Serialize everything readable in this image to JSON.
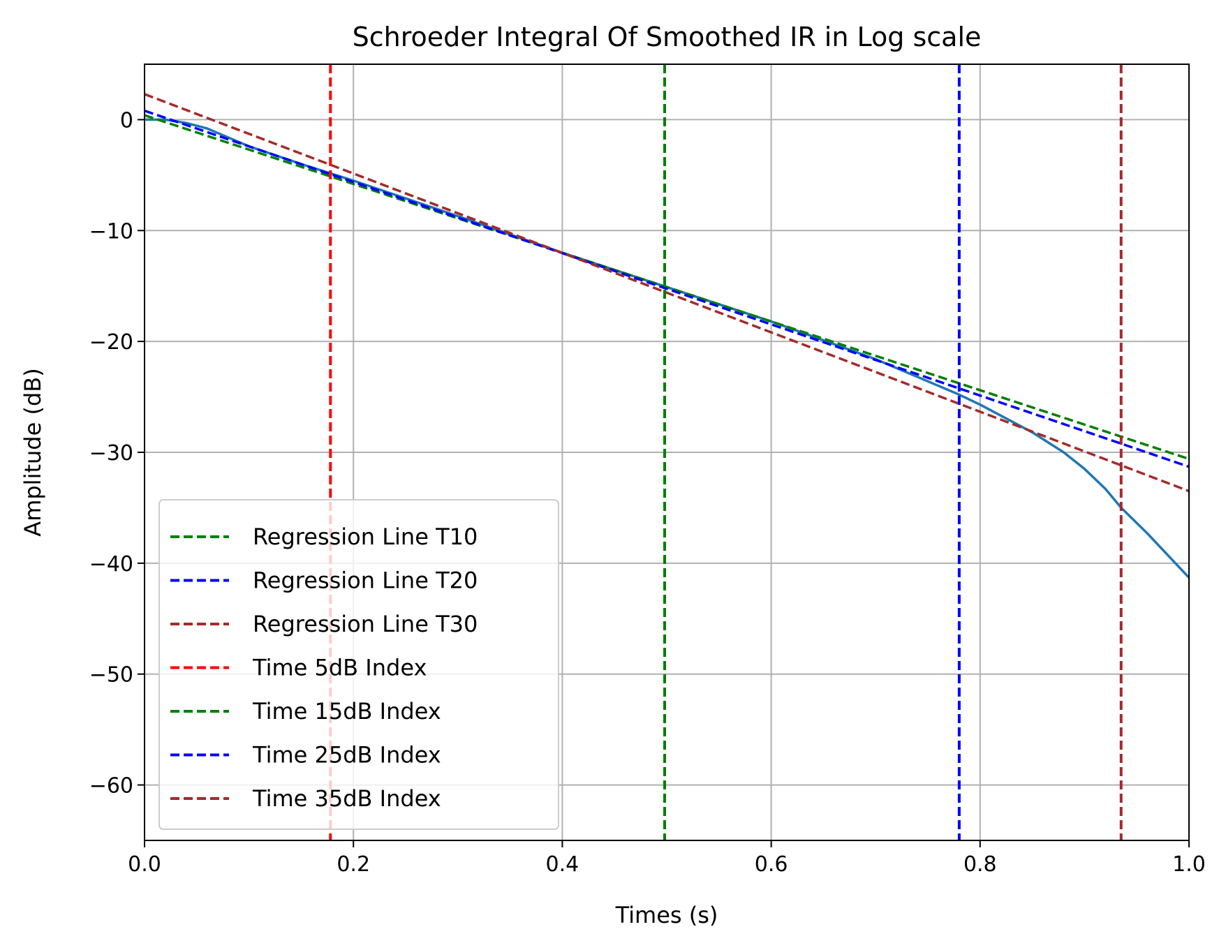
{
  "chart_data": {
    "type": "line",
    "title": "Schroeder Integral Of Smoothed IR in Log scale",
    "xlabel": "Times (s)",
    "ylabel": "Amplitude (dB)",
    "xlim": [
      0.0,
      1.0
    ],
    "ylim": [
      -65,
      5
    ],
    "xticks": [
      0.0,
      0.2,
      0.4,
      0.6,
      0.8,
      1.0
    ],
    "xtick_labels": [
      "0.0",
      "0.2",
      "0.4",
      "0.6",
      "0.8",
      "1.0"
    ],
    "yticks": [
      0,
      -10,
      -20,
      -30,
      -40,
      -50,
      -60
    ],
    "ytick_labels": [
      "0",
      "−10",
      "−20",
      "−30",
      "−40",
      "−50",
      "−60"
    ],
    "grid": true,
    "legend_position": "lower-left",
    "curve": {
      "color": "#1f77b4",
      "x": [
        0.0,
        0.02,
        0.04,
        0.06,
        0.08,
        0.1,
        0.15,
        0.2,
        0.3,
        0.4,
        0.5,
        0.6,
        0.7,
        0.75,
        0.78,
        0.8,
        0.82,
        0.85,
        0.88,
        0.9,
        0.92,
        0.935,
        0.96,
        1.0
      ],
      "y": [
        0.0,
        0.0,
        -0.3,
        -0.8,
        -1.6,
        -2.4,
        -4.0,
        -5.5,
        -8.7,
        -12.0,
        -15.1,
        -18.2,
        -21.6,
        -23.6,
        -24.8,
        -25.7,
        -26.7,
        -28.2,
        -30.0,
        -31.5,
        -33.3,
        -35.0,
        -37.3,
        -41.3
      ]
    },
    "regression_lines": [
      {
        "name": "Regression Line T10",
        "color": "#008000",
        "x": [
          0.0,
          1.0
        ],
        "y": [
          0.4,
          -30.6
        ]
      },
      {
        "name": "Regression Line T20",
        "color": "#0000ff",
        "x": [
          0.0,
          1.0
        ],
        "y": [
          0.8,
          -31.3
        ]
      },
      {
        "name": "Regression Line T30",
        "color": "#a52a2a",
        "x": [
          0.0,
          1.0
        ],
        "y": [
          2.3,
          -33.5
        ]
      }
    ],
    "index_lines": [
      {
        "name": "Time 5dB Index",
        "color": "#ff0000",
        "x": 0.178
      },
      {
        "name": "Time 15dB Index",
        "color": "#008000",
        "x": 0.498
      },
      {
        "name": "Time 25dB Index",
        "color": "#0000ff",
        "x": 0.78
      },
      {
        "name": "Time 35dB Index",
        "color": "#a52a2a",
        "x": 0.935
      }
    ]
  }
}
